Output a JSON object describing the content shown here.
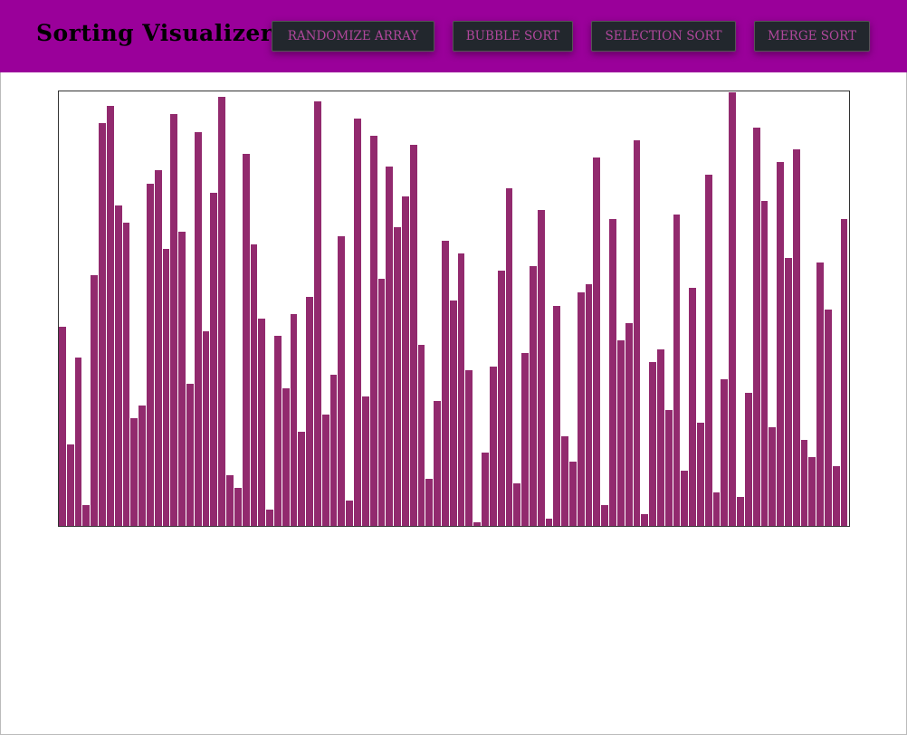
{
  "header": {
    "title": "Sorting Visualizer",
    "buttons": [
      "RANDOMIZE ARRAY",
      "BUBBLE SORT",
      "SELECTION SORT",
      "MERGE SORT"
    ]
  },
  "bar_color": "#922a6e",
  "bars": [
    220,
    90,
    186,
    23,
    277,
    445,
    464,
    354,
    335,
    119,
    133,
    378,
    393,
    306,
    455,
    325,
    157,
    435,
    215,
    368,
    474,
    56,
    42,
    411,
    311,
    229,
    18,
    210,
    152,
    234,
    104,
    253,
    469,
    123,
    167,
    320,
    28,
    450,
    143,
    431,
    273,
    397,
    330,
    364,
    421,
    200,
    52,
    138,
    315,
    249,
    301,
    172,
    4,
    81,
    176,
    282,
    373,
    47,
    191,
    287,
    349,
    8,
    243,
    99,
    71,
    258,
    267,
    407,
    23,
    339,
    205,
    224,
    426,
    13,
    181,
    195,
    128,
    344,
    61,
    263,
    114,
    388,
    37,
    162,
    479,
    32,
    147,
    440,
    359,
    109,
    402,
    296,
    416,
    95,
    76,
    291,
    239,
    66,
    339
  ]
}
